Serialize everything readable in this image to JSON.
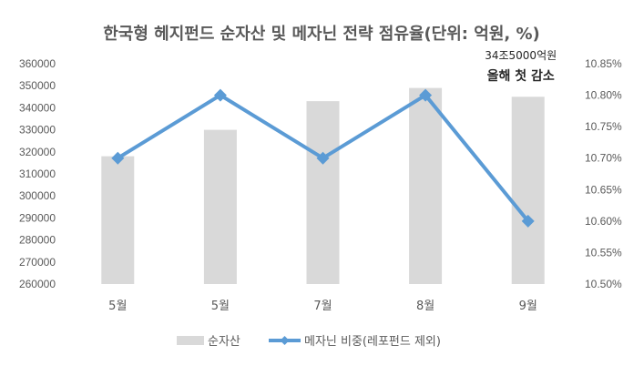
{
  "chart_data": {
    "type": "bar",
    "title": "한국형 헤지펀드 순자산 및 메자닌 전략 점유율(단위: 억원, %)",
    "categories": [
      "5월",
      "5월",
      "7월",
      "8월",
      "9월"
    ],
    "series": [
      {
        "name": "순자산",
        "type": "bar",
        "axis": "left",
        "values": [
          318000,
          330000,
          343000,
          349000,
          345000
        ]
      },
      {
        "name": "메자닌 비중(레포펀드 제외)",
        "type": "line",
        "axis": "right",
        "marker": "diamond",
        "values": [
          10.7,
          10.8,
          10.7,
          10.8,
          10.6
        ]
      }
    ],
    "y_left": {
      "ylim": [
        260000,
        360000
      ],
      "ticks": [
        "260000",
        "270000",
        "280000",
        "290000",
        "300000",
        "310000",
        "320000",
        "330000",
        "340000",
        "350000",
        "360000"
      ]
    },
    "y_right": {
      "ylim": [
        10.5,
        10.85
      ],
      "ticks": [
        "10.50%",
        "10.55%",
        "10.60%",
        "10.65%",
        "10.70%",
        "10.75%",
        "10.80%",
        "10.85%"
      ]
    },
    "annotations": [
      {
        "text": "34조5000억원",
        "category_index": 4,
        "bold": false
      },
      {
        "text": "올해 첫 감소",
        "category_index": 4,
        "bold": true
      }
    ],
    "legend": "bottom",
    "grid": false,
    "colors": {
      "bar": "#d9d9d9",
      "line": "#5b9bd5",
      "text": "#595959",
      "axis": "#bfbfbf"
    }
  }
}
